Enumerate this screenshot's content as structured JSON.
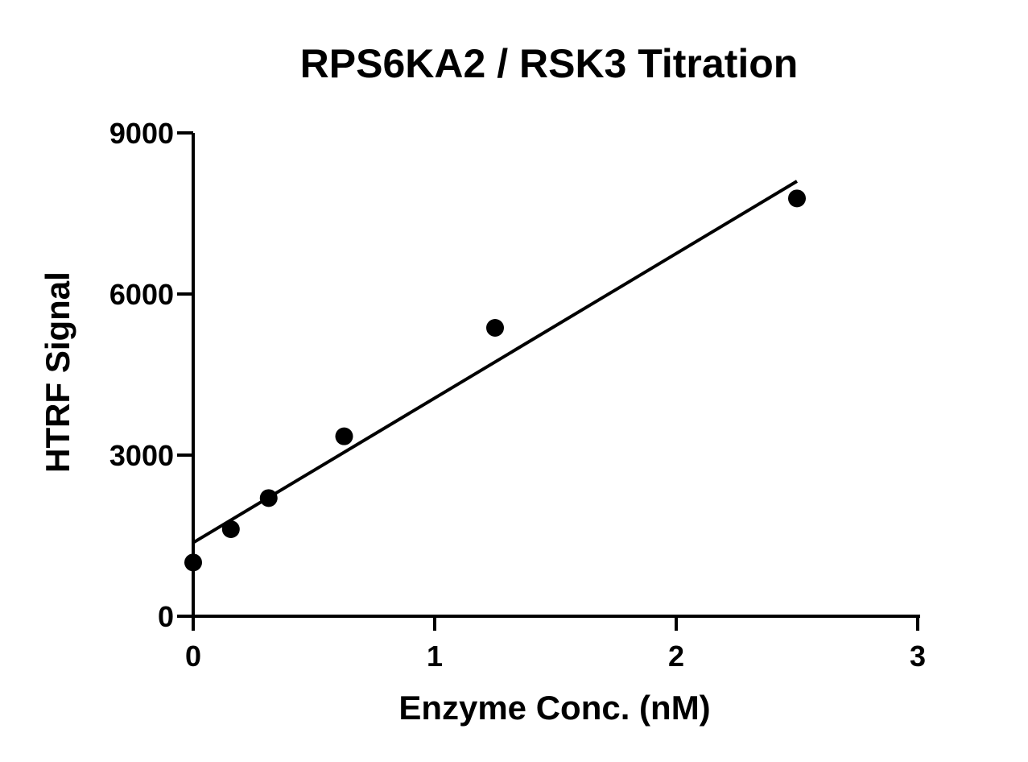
{
  "chart_data": {
    "type": "scatter",
    "title": "RPS6KA2 / RSK3 Titration",
    "xlabel": "Enzyme Conc. (nM)",
    "ylabel": "HTRF Signal",
    "xlim": [
      0,
      3
    ],
    "ylim": [
      0,
      9000
    ],
    "x_ticks": [
      "0",
      "1",
      "2",
      "3"
    ],
    "y_ticks": [
      "0",
      "3000",
      "6000",
      "9000"
    ],
    "grid": false,
    "legend": "none",
    "series": [
      {
        "x": [
          0,
          0.156,
          0.3125,
          0.625,
          1.25,
          2.5
        ],
        "y": [
          1000,
          1620,
          2200,
          3350,
          5370,
          7780
        ]
      }
    ],
    "fit_line": {
      "type": "linear",
      "x": [
        0,
        2.5
      ],
      "y": [
        1370,
        8100
      ]
    }
  }
}
